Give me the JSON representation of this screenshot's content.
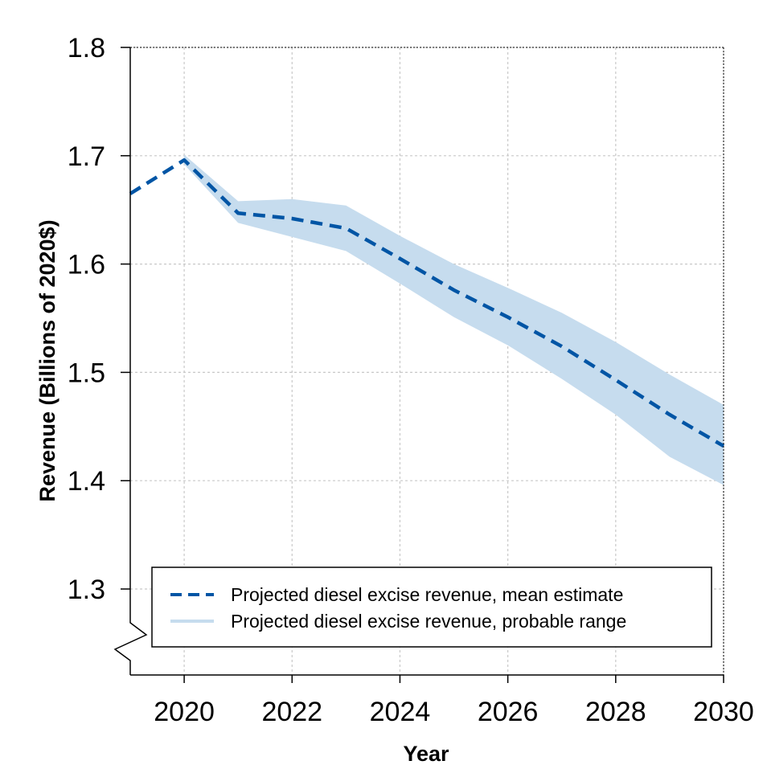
{
  "chart_data": {
    "type": "line",
    "title": "",
    "xlabel": "Year",
    "ylabel": "Revenue (Billions of 2020$)",
    "x_ticks": [
      "2020",
      "2022",
      "2024",
      "2026",
      "2028",
      "2030"
    ],
    "y_ticks": [
      "1.3",
      "1.4",
      "1.5",
      "1.6",
      "1.7",
      "1.8"
    ],
    "xlim": [
      2019,
      2030
    ],
    "ylim": [
      1.25,
      1.8
    ],
    "y_axis_break": true,
    "grid": true,
    "legend_position": "bottom",
    "x": [
      2019,
      2020,
      2021,
      2022,
      2023,
      2024,
      2025,
      2026,
      2027,
      2028,
      2029,
      2030
    ],
    "series": [
      {
        "name": "Projected diesel excise revenue, mean estimate",
        "style": "dashed",
        "color": "#0055a5",
        "values": [
          1.665,
          1.696,
          1.647,
          1.642,
          1.633,
          1.605,
          1.576,
          1.551,
          1.524,
          1.493,
          1.461,
          1.432
        ]
      },
      {
        "name": "Projected diesel excise revenue, probable range",
        "style": "band",
        "color": "#c6dcee",
        "band_start": 2020,
        "lower": [
          null,
          1.692,
          1.638,
          1.625,
          1.612,
          1.582,
          1.551,
          1.525,
          1.494,
          1.461,
          1.422,
          1.396
        ],
        "upper": [
          null,
          1.701,
          1.658,
          1.66,
          1.654,
          1.626,
          1.6,
          1.578,
          1.555,
          1.528,
          1.498,
          1.47
        ]
      }
    ]
  }
}
